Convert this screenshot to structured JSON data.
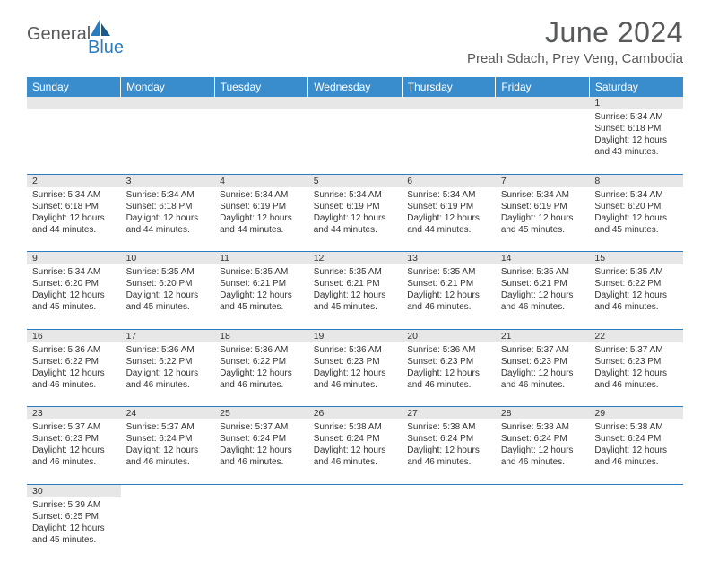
{
  "brand": {
    "part1": "General",
    "part2": "Blue"
  },
  "title": "June 2024",
  "location": "Preah Sdach, Prey Veng, Cambodia",
  "colors": {
    "header_bg": "#3a8dcc",
    "border": "#2b7bbf",
    "daynum_bg": "#e7e7e7",
    "text": "#333333",
    "brand_gray": "#58595b",
    "brand_blue": "#2b7bbf",
    "white": "#ffffff"
  },
  "typography": {
    "title_fontsize": 32,
    "location_fontsize": 15,
    "header_fontsize": 12,
    "cell_fontsize": 10
  },
  "daynames": [
    "Sunday",
    "Monday",
    "Tuesday",
    "Wednesday",
    "Thursday",
    "Friday",
    "Saturday"
  ],
  "weeks": [
    [
      null,
      null,
      null,
      null,
      null,
      null,
      {
        "n": "1",
        "sr": "Sunrise: 5:34 AM",
        "ss": "Sunset: 6:18 PM",
        "d1": "Daylight: 12 hours",
        "d2": "and 43 minutes."
      }
    ],
    [
      {
        "n": "2",
        "sr": "Sunrise: 5:34 AM",
        "ss": "Sunset: 6:18 PM",
        "d1": "Daylight: 12 hours",
        "d2": "and 44 minutes."
      },
      {
        "n": "3",
        "sr": "Sunrise: 5:34 AM",
        "ss": "Sunset: 6:18 PM",
        "d1": "Daylight: 12 hours",
        "d2": "and 44 minutes."
      },
      {
        "n": "4",
        "sr": "Sunrise: 5:34 AM",
        "ss": "Sunset: 6:19 PM",
        "d1": "Daylight: 12 hours",
        "d2": "and 44 minutes."
      },
      {
        "n": "5",
        "sr": "Sunrise: 5:34 AM",
        "ss": "Sunset: 6:19 PM",
        "d1": "Daylight: 12 hours",
        "d2": "and 44 minutes."
      },
      {
        "n": "6",
        "sr": "Sunrise: 5:34 AM",
        "ss": "Sunset: 6:19 PM",
        "d1": "Daylight: 12 hours",
        "d2": "and 44 minutes."
      },
      {
        "n": "7",
        "sr": "Sunrise: 5:34 AM",
        "ss": "Sunset: 6:19 PM",
        "d1": "Daylight: 12 hours",
        "d2": "and 45 minutes."
      },
      {
        "n": "8",
        "sr": "Sunrise: 5:34 AM",
        "ss": "Sunset: 6:20 PM",
        "d1": "Daylight: 12 hours",
        "d2": "and 45 minutes."
      }
    ],
    [
      {
        "n": "9",
        "sr": "Sunrise: 5:34 AM",
        "ss": "Sunset: 6:20 PM",
        "d1": "Daylight: 12 hours",
        "d2": "and 45 minutes."
      },
      {
        "n": "10",
        "sr": "Sunrise: 5:35 AM",
        "ss": "Sunset: 6:20 PM",
        "d1": "Daylight: 12 hours",
        "d2": "and 45 minutes."
      },
      {
        "n": "11",
        "sr": "Sunrise: 5:35 AM",
        "ss": "Sunset: 6:21 PM",
        "d1": "Daylight: 12 hours",
        "d2": "and 45 minutes."
      },
      {
        "n": "12",
        "sr": "Sunrise: 5:35 AM",
        "ss": "Sunset: 6:21 PM",
        "d1": "Daylight: 12 hours",
        "d2": "and 45 minutes."
      },
      {
        "n": "13",
        "sr": "Sunrise: 5:35 AM",
        "ss": "Sunset: 6:21 PM",
        "d1": "Daylight: 12 hours",
        "d2": "and 46 minutes."
      },
      {
        "n": "14",
        "sr": "Sunrise: 5:35 AM",
        "ss": "Sunset: 6:21 PM",
        "d1": "Daylight: 12 hours",
        "d2": "and 46 minutes."
      },
      {
        "n": "15",
        "sr": "Sunrise: 5:35 AM",
        "ss": "Sunset: 6:22 PM",
        "d1": "Daylight: 12 hours",
        "d2": "and 46 minutes."
      }
    ],
    [
      {
        "n": "16",
        "sr": "Sunrise: 5:36 AM",
        "ss": "Sunset: 6:22 PM",
        "d1": "Daylight: 12 hours",
        "d2": "and 46 minutes."
      },
      {
        "n": "17",
        "sr": "Sunrise: 5:36 AM",
        "ss": "Sunset: 6:22 PM",
        "d1": "Daylight: 12 hours",
        "d2": "and 46 minutes."
      },
      {
        "n": "18",
        "sr": "Sunrise: 5:36 AM",
        "ss": "Sunset: 6:22 PM",
        "d1": "Daylight: 12 hours",
        "d2": "and 46 minutes."
      },
      {
        "n": "19",
        "sr": "Sunrise: 5:36 AM",
        "ss": "Sunset: 6:23 PM",
        "d1": "Daylight: 12 hours",
        "d2": "and 46 minutes."
      },
      {
        "n": "20",
        "sr": "Sunrise: 5:36 AM",
        "ss": "Sunset: 6:23 PM",
        "d1": "Daylight: 12 hours",
        "d2": "and 46 minutes."
      },
      {
        "n": "21",
        "sr": "Sunrise: 5:37 AM",
        "ss": "Sunset: 6:23 PM",
        "d1": "Daylight: 12 hours",
        "d2": "and 46 minutes."
      },
      {
        "n": "22",
        "sr": "Sunrise: 5:37 AM",
        "ss": "Sunset: 6:23 PM",
        "d1": "Daylight: 12 hours",
        "d2": "and 46 minutes."
      }
    ],
    [
      {
        "n": "23",
        "sr": "Sunrise: 5:37 AM",
        "ss": "Sunset: 6:23 PM",
        "d1": "Daylight: 12 hours",
        "d2": "and 46 minutes."
      },
      {
        "n": "24",
        "sr": "Sunrise: 5:37 AM",
        "ss": "Sunset: 6:24 PM",
        "d1": "Daylight: 12 hours",
        "d2": "and 46 minutes."
      },
      {
        "n": "25",
        "sr": "Sunrise: 5:37 AM",
        "ss": "Sunset: 6:24 PM",
        "d1": "Daylight: 12 hours",
        "d2": "and 46 minutes."
      },
      {
        "n": "26",
        "sr": "Sunrise: 5:38 AM",
        "ss": "Sunset: 6:24 PM",
        "d1": "Daylight: 12 hours",
        "d2": "and 46 minutes."
      },
      {
        "n": "27",
        "sr": "Sunrise: 5:38 AM",
        "ss": "Sunset: 6:24 PM",
        "d1": "Daylight: 12 hours",
        "d2": "and 46 minutes."
      },
      {
        "n": "28",
        "sr": "Sunrise: 5:38 AM",
        "ss": "Sunset: 6:24 PM",
        "d1": "Daylight: 12 hours",
        "d2": "and 46 minutes."
      },
      {
        "n": "29",
        "sr": "Sunrise: 5:38 AM",
        "ss": "Sunset: 6:24 PM",
        "d1": "Daylight: 12 hours",
        "d2": "and 46 minutes."
      }
    ],
    [
      {
        "n": "30",
        "sr": "Sunrise: 5:39 AM",
        "ss": "Sunset: 6:25 PM",
        "d1": "Daylight: 12 hours",
        "d2": "and 45 minutes."
      },
      null,
      null,
      null,
      null,
      null,
      null
    ]
  ]
}
